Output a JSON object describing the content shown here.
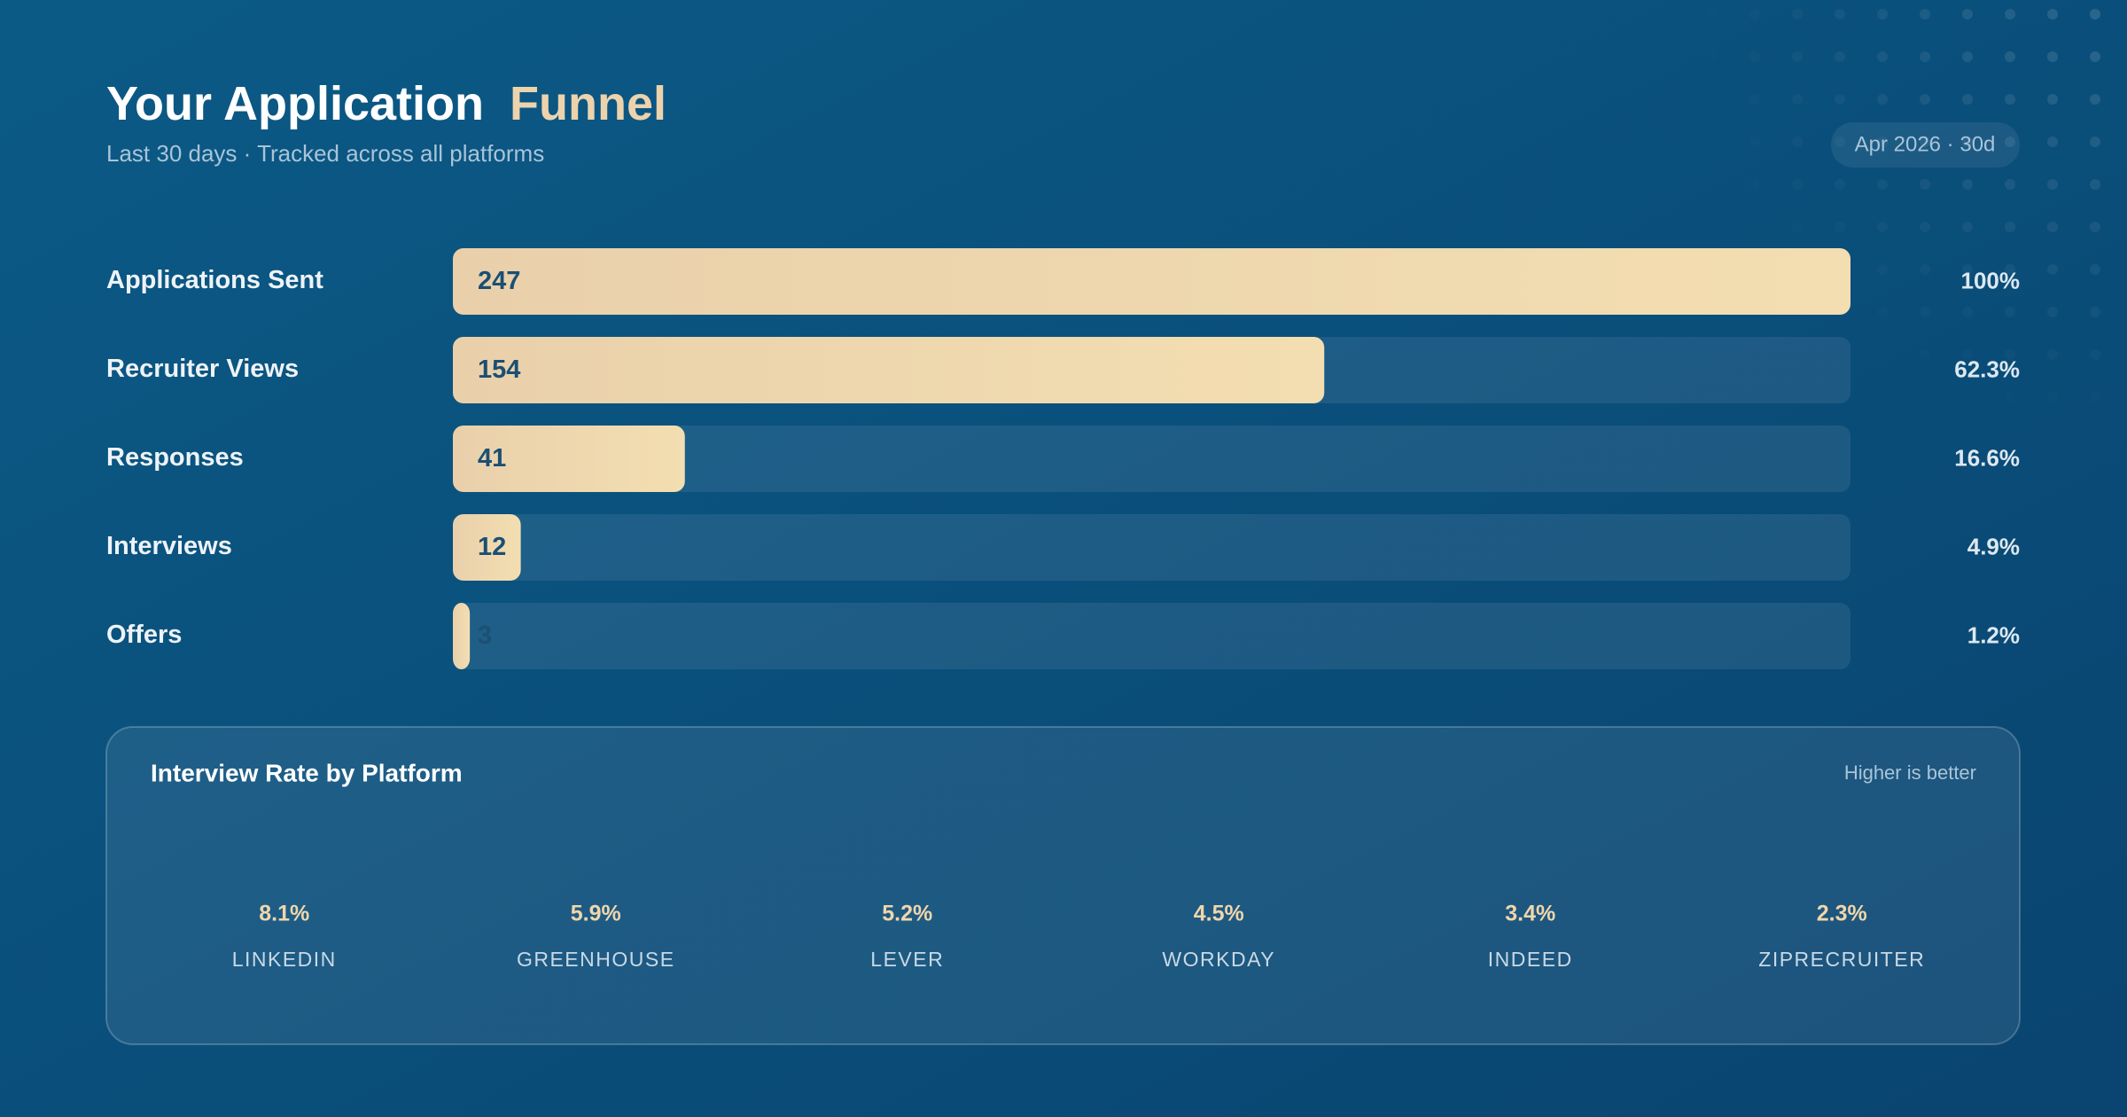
{
  "header": {
    "title": "Your Application",
    "title_highlight": "Funnel",
    "subtitle": "Last 30 days · Tracked across all platforms",
    "badge": "Apr 2026 · 30d"
  },
  "chart_data": [
    {
      "type": "hbar",
      "categories": [
        "Applications Sent",
        "Recruiter Views",
        "Responses",
        "Interviews",
        "Offers"
      ],
      "values": [
        247,
        154,
        41,
        12,
        3
      ],
      "shares": [
        "100%",
        "62.3%",
        "16.6%",
        "4.9%",
        "1.2%"
      ],
      "xlim": [
        0,
        247
      ],
      "color": "#f0d6ab"
    },
    {
      "type": "labels",
      "title": "Interview Rate by Platform",
      "note": "Higher is better",
      "categories": [
        "LINKEDIN",
        "GREENHOUSE",
        "LEVER",
        "WORKDAY",
        "INDEED",
        "ZIPRECRUITER"
      ],
      "values": [
        8.1,
        5.9,
        5.2,
        4.5,
        3.4,
        2.3
      ],
      "value_labels": [
        "8.1%",
        "5.9%",
        "5.2%",
        "4.5%",
        "3.4%",
        "2.3%"
      ],
      "color": "#f0d6ab"
    }
  ]
}
